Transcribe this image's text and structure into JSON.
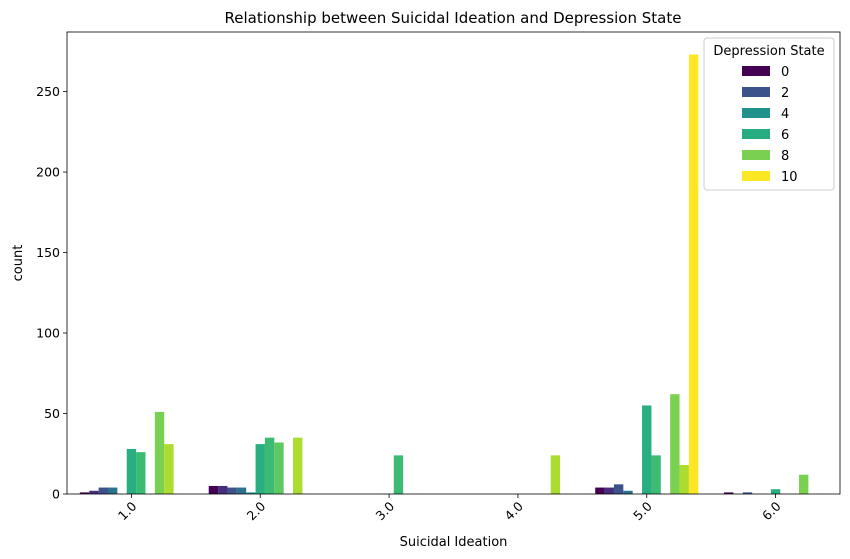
{
  "chart_data": {
    "type": "bar",
    "title": "Relationship between Suicidal Ideation and Depression State",
    "xlabel": "Suicidal Ideation",
    "ylabel": "count",
    "categories": [
      "1.0",
      "2.0",
      "3.0",
      "4.0",
      "5.0",
      "6.0"
    ],
    "ylim": [
      0,
      287
    ],
    "yticks": [
      0,
      50,
      100,
      150,
      200,
      250
    ],
    "ytick_labels": [
      "0",
      "50",
      "100",
      "150",
      "200",
      "250"
    ],
    "grid": false,
    "legend": {
      "title": "Depression State",
      "placement": "top-right",
      "entries": [
        {
          "label": "0",
          "color": "#440154"
        },
        {
          "label": "2",
          "color": "#3b528b"
        },
        {
          "label": "4",
          "color": "#21918c"
        },
        {
          "label": "6",
          "color": "#27ad81"
        },
        {
          "label": "8",
          "color": "#7ad151"
        },
        {
          "label": "10",
          "color": "#fde725"
        }
      ]
    },
    "series": [
      {
        "color": "#440154",
        "values": [
          1,
          5,
          0,
          0,
          4,
          1
        ]
      },
      {
        "color": "#472d7b",
        "values": [
          2,
          5,
          0,
          0,
          4,
          0
        ]
      },
      {
        "color": "#3b528b",
        "values": [
          4,
          4,
          0,
          0,
          6,
          1
        ]
      },
      {
        "color": "#2c728e",
        "values": [
          4,
          4,
          0,
          0,
          2,
          0
        ]
      },
      {
        "color": "#21918c",
        "values": [
          0,
          1,
          0,
          0,
          0,
          0
        ]
      },
      {
        "color": "#28ae80",
        "values": [
          28,
          31,
          0,
          0,
          55,
          3
        ]
      },
      {
        "color": "#3cbb75",
        "values": [
          26,
          35,
          24,
          0,
          24,
          0
        ]
      },
      {
        "color": "#5ec962",
        "values": [
          0,
          32,
          0,
          0,
          0,
          0
        ]
      },
      {
        "color": "#7ad151",
        "values": [
          51,
          0,
          0,
          0,
          62,
          12
        ]
      },
      {
        "color": "#addc30",
        "values": [
          31,
          35,
          0,
          24,
          18,
          0
        ]
      },
      {
        "color": "#fde725",
        "values": [
          0,
          0,
          0,
          0,
          273,
          0
        ]
      }
    ]
  }
}
